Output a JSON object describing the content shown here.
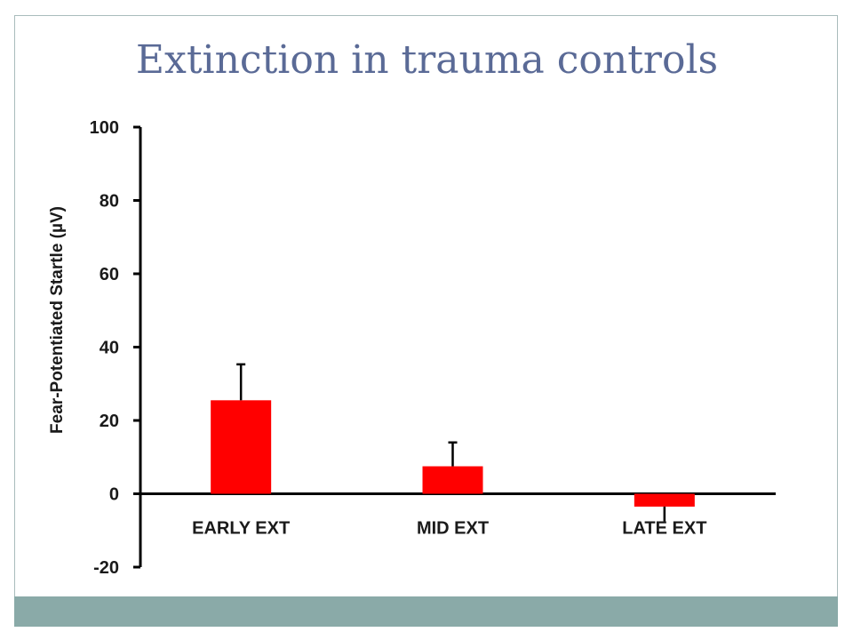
{
  "slide": {
    "title": "Extinction in trauma controls",
    "footer_color": "#8aaaa8",
    "border_color": "#a9bcbc"
  },
  "chart_data": {
    "type": "bar",
    "title": "",
    "xlabel": "",
    "ylabel": "Fear-Potentiated Startle  (µV)",
    "categories": [
      "EARLY EXT",
      "MID EXT",
      "LATE EXT"
    ],
    "values": [
      25.5,
      7.5,
      -3.5
    ],
    "error_plus": [
      9.8,
      6.5,
      0
    ],
    "error_minus": [
      0,
      0,
      4
    ],
    "ylim": [
      -20,
      100
    ],
    "yticks": [
      -20,
      0,
      20,
      40,
      60,
      80,
      100
    ],
    "ytick_labels": [
      "-20",
      "0",
      "20",
      "40",
      "60",
      "80",
      "100"
    ],
    "bar_color": "#ff0000",
    "grid": false,
    "legend": "none"
  }
}
